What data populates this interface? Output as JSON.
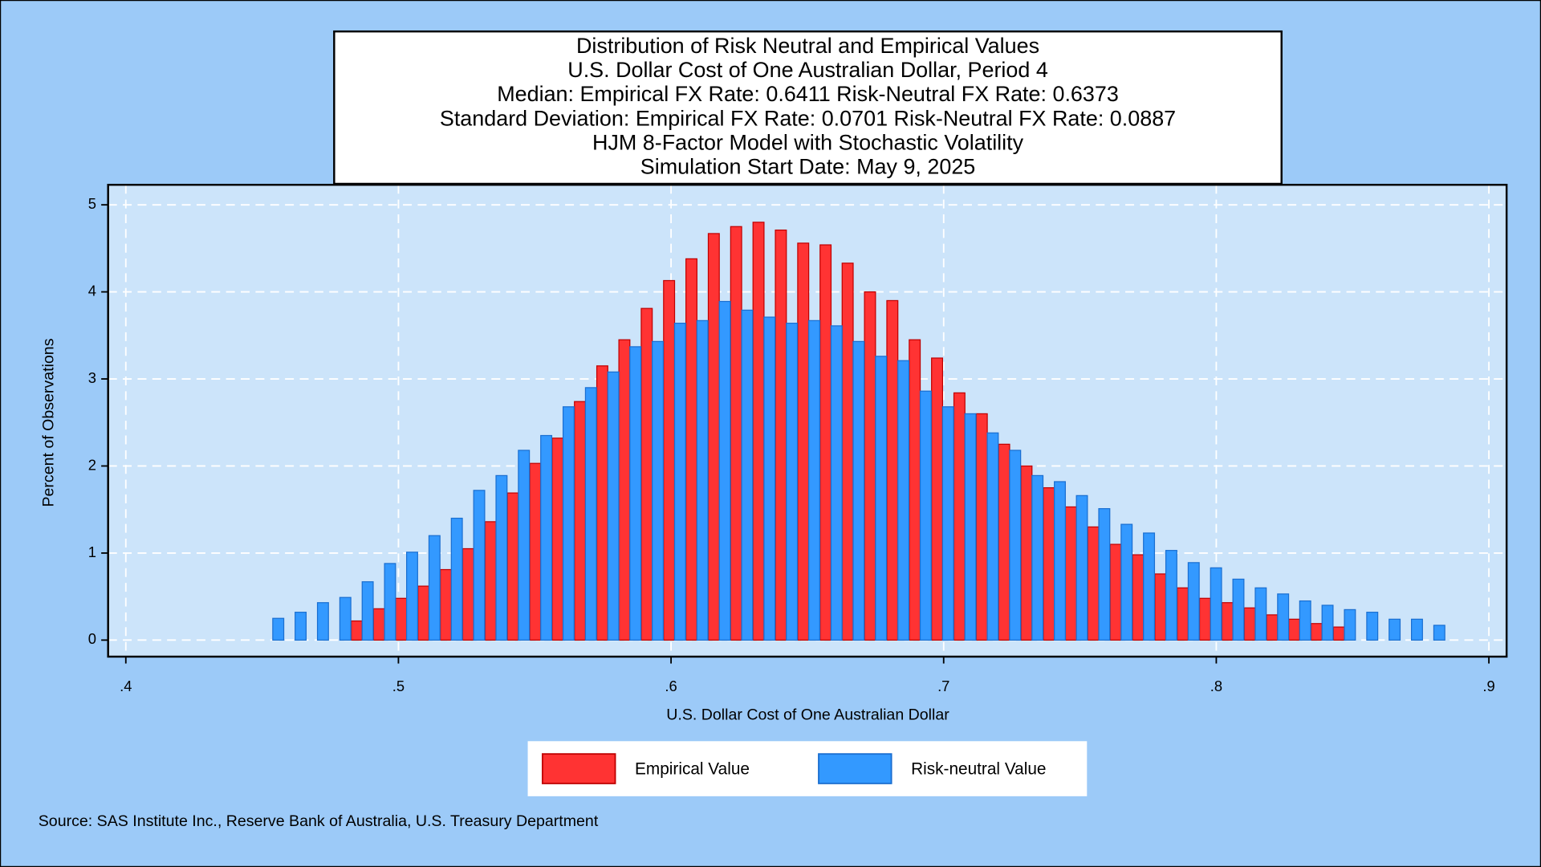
{
  "chart_data": {
    "type": "bar",
    "title_lines": [
      "Distribution of Risk Neutral and Empirical Values",
      "U.S. Dollar Cost of One Australian Dollar, Period 4",
      "Median: Empirical FX Rate:  0.6411   Risk-Neutral FX Rate:  0.6373",
      "Standard Deviation: Empirical FX Rate:  0.0701   Risk-Neutral FX Rate:  0.0887",
      "HJM 8-Factor Model with Stochastic Volatility",
      "Simulation Start Date: May 9, 2025"
    ],
    "x_label": "U.S. Dollar Cost of One Australian Dollar",
    "y_label": "Percent of Observations",
    "source": "Source: SAS Institute Inc., Reserve Bank of Australia, U.S. Treasury Department",
    "x": [
      0.4539,
      0.4621,
      0.4703,
      0.4785,
      0.4867,
      0.4949,
      0.503,
      0.5112,
      0.5194,
      0.5276,
      0.5358,
      0.544,
      0.5522,
      0.5604,
      0.5686,
      0.5768,
      0.5849,
      0.5931,
      0.6013,
      0.6095,
      0.6177,
      0.6259,
      0.6341,
      0.6423,
      0.6505,
      0.6587,
      0.6668,
      0.675,
      0.6832,
      0.6914,
      0.6996,
      0.7078,
      0.716,
      0.7242,
      0.7324,
      0.7406,
      0.7487,
      0.7569,
      0.7651,
      0.7733,
      0.7815,
      0.7897,
      0.7979,
      0.8061,
      0.8143,
      0.8225,
      0.8306,
      0.8388,
      0.847,
      0.8552,
      0.8634,
      0.8716,
      0.8798
    ],
    "series": [
      {
        "name": "Empirical Value",
        "color": "#ff3333",
        "values": [
          null,
          null,
          null,
          null,
          0.22,
          0.36,
          0.48,
          0.62,
          0.81,
          1.05,
          1.36,
          1.69,
          2.03,
          2.32,
          2.74,
          3.15,
          3.45,
          3.81,
          4.13,
          4.38,
          4.67,
          4.75,
          4.8,
          4.71,
          4.56,
          4.54,
          4.33,
          4.0,
          3.9,
          3.45,
          3.24,
          2.84,
          2.6,
          2.25,
          2.0,
          1.75,
          1.53,
          1.3,
          1.1,
          0.98,
          0.76,
          0.6,
          0.48,
          0.43,
          0.37,
          0.29,
          0.24,
          0.19,
          0.15,
          null,
          null,
          null,
          null
        ]
      },
      {
        "name": "Risk-neutral Value",
        "color": "#3399ff",
        "values": [
          0.25,
          0.32,
          0.43,
          0.49,
          0.67,
          0.88,
          1.01,
          1.2,
          1.4,
          1.72,
          1.89,
          2.18,
          2.35,
          2.68,
          2.9,
          3.08,
          3.37,
          3.43,
          3.64,
          3.67,
          3.89,
          3.79,
          3.71,
          3.64,
          3.67,
          3.61,
          3.43,
          3.26,
          3.21,
          2.86,
          2.68,
          2.6,
          2.38,
          2.18,
          1.89,
          1.82,
          1.66,
          1.51,
          1.33,
          1.23,
          1.03,
          0.89,
          0.83,
          0.7,
          0.6,
          0.53,
          0.45,
          0.4,
          0.35,
          0.32,
          0.24,
          0.24,
          0.17
        ]
      }
    ],
    "xlim": [
      0.3935,
      0.9065
    ],
    "ylim": [
      -0.19,
      5.23
    ],
    "xticks": [
      {
        "value": 0.4,
        "label": ".4"
      },
      {
        "value": 0.5,
        "label": ".5"
      },
      {
        "value": 0.6,
        "label": ".6"
      },
      {
        "value": 0.7,
        "label": ".7"
      },
      {
        "value": 0.8,
        "label": ".8"
      },
      {
        "value": 0.9,
        "label": ".9"
      }
    ],
    "yticks": [
      0,
      1,
      2,
      3,
      4,
      5
    ],
    "grid": true
  }
}
